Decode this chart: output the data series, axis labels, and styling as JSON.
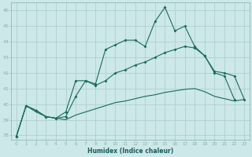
{
  "title": "",
  "xlabel": "Humidex (Indice chaleur)",
  "background_color": "#cce8e8",
  "grid_color": "#b0d0d0",
  "line_color": "#1a6b5a",
  "xlim": [
    -0.5,
    23.5
  ],
  "ylim": [
    37.7,
    46.5
  ],
  "xticks": [
    0,
    1,
    2,
    3,
    4,
    5,
    6,
    7,
    8,
    9,
    10,
    11,
    12,
    13,
    14,
    15,
    16,
    17,
    18,
    19,
    20,
    21,
    22,
    23
  ],
  "yticks": [
    38,
    39,
    40,
    41,
    42,
    43,
    44,
    45,
    46
  ],
  "curve1_x": [
    0,
    1,
    2,
    3,
    4,
    5,
    6,
    7,
    8,
    9,
    10,
    11,
    12,
    13,
    14,
    15,
    16,
    17,
    18,
    19,
    20,
    21,
    22,
    23
  ],
  "curve1_y": [
    37.9,
    39.9,
    39.6,
    39.2,
    39.1,
    39.5,
    41.5,
    41.5,
    41.3,
    43.5,
    43.8,
    44.1,
    44.1,
    43.7,
    45.3,
    46.2,
    44.7,
    45.0,
    43.7,
    43.1,
    42.0,
    41.8,
    40.3,
    null
  ],
  "curve2_x": [
    0,
    1,
    2,
    3,
    4,
    5,
    6,
    7,
    8,
    9,
    10,
    11,
    12,
    13,
    14,
    15,
    16,
    17,
    18,
    19,
    20,
    21,
    22,
    23
  ],
  "curve2_y": [
    37.9,
    39.9,
    39.6,
    39.2,
    39.1,
    39.2,
    40.5,
    41.5,
    41.2,
    41.5,
    42.0,
    42.2,
    42.5,
    42.7,
    43.0,
    43.3,
    43.5,
    43.7,
    43.6,
    43.1,
    42.1,
    42.0,
    41.8,
    40.3
  ],
  "curve3_x": [
    0,
    1,
    2,
    3,
    4,
    5,
    6,
    7,
    8,
    9,
    10,
    11,
    12,
    13,
    14,
    15,
    16,
    17,
    18,
    19,
    20,
    21,
    22,
    23
  ],
  "curve3_y": [
    37.9,
    39.9,
    39.5,
    39.2,
    39.1,
    39.0,
    39.3,
    39.5,
    39.7,
    39.9,
    40.1,
    40.2,
    40.35,
    40.5,
    40.6,
    40.75,
    40.85,
    40.95,
    41.0,
    40.8,
    40.5,
    40.35,
    40.2,
    40.3
  ]
}
